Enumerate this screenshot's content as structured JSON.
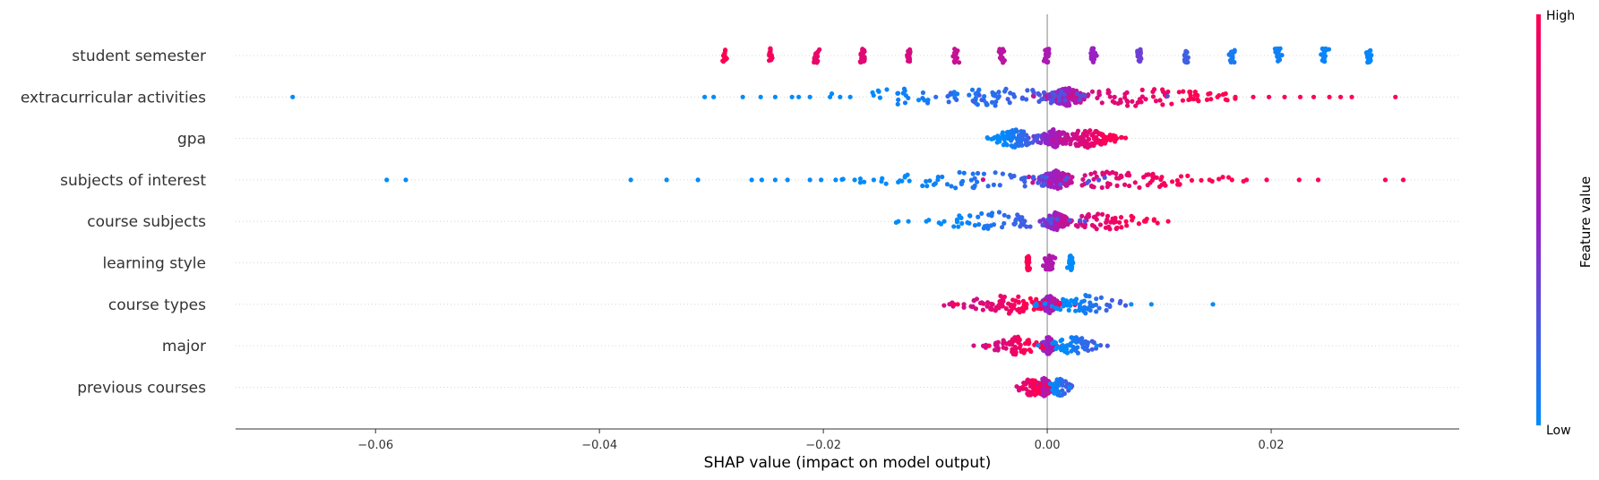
{
  "chart_data": {
    "type": "scatter",
    "title": "",
    "xlabel": "SHAP value (impact on model output)",
    "ylabel": "",
    "xlim": [
      -0.0725,
      0.0368
    ],
    "xticks": [
      {
        "value": -0.06,
        "label": "−0.06"
      },
      {
        "value": -0.04,
        "label": "−0.04"
      },
      {
        "value": -0.02,
        "label": "−0.02"
      },
      {
        "value": 0.0,
        "label": "0.00"
      },
      {
        "value": 0.02,
        "label": "0.02"
      }
    ],
    "zero_line": 0.0,
    "grid": "dotted horizontal rows",
    "colors": {
      "low": "#008bfb",
      "high": "#ff0052",
      "mid": "#9b1fc4",
      "axis": "#333333",
      "zero_line": "#999999"
    },
    "colorbar": {
      "title": "Feature value",
      "low_label": "Low",
      "high_label": "High"
    },
    "features": [
      {
        "name": "student semester",
        "clusters": [
          {
            "x": -0.0288,
            "c": 1.0,
            "n": 14,
            "s": 0.00012
          },
          {
            "x": -0.0247,
            "c": 0.95,
            "n": 18,
            "s": 0.00012
          },
          {
            "x": -0.0206,
            "c": 0.9,
            "n": 20,
            "s": 0.00012
          },
          {
            "x": -0.0165,
            "c": 0.85,
            "n": 24,
            "s": 0.00012
          },
          {
            "x": -0.0124,
            "c": 0.8,
            "n": 18,
            "s": 0.00012
          },
          {
            "x": -0.0082,
            "c": 0.72,
            "n": 18,
            "s": 0.00012
          },
          {
            "x": -0.0041,
            "c": 0.65,
            "n": 18,
            "s": 0.00012
          },
          {
            "x": 0.0,
            "c": 0.58,
            "n": 22,
            "s": 0.00012
          },
          {
            "x": 0.0041,
            "c": 0.5,
            "n": 18,
            "s": 0.00012
          },
          {
            "x": 0.0082,
            "c": 0.35,
            "n": 22,
            "s": 0.00012
          },
          {
            "x": 0.0124,
            "c": 0.2,
            "n": 20,
            "s": 0.00012
          },
          {
            "x": 0.0165,
            "c": 0.08,
            "n": 20,
            "s": 0.00012
          },
          {
            "x": 0.0206,
            "c": 0.05,
            "n": 18,
            "s": 0.00012
          },
          {
            "x": 0.0247,
            "c": 0.03,
            "n": 18,
            "s": 0.00012
          },
          {
            "x": 0.0288,
            "c": 0.02,
            "n": 16,
            "s": 0.00012
          }
        ],
        "outliers": []
      },
      {
        "name": "extracurricular activities",
        "clusters": [
          {
            "x": 0.0018,
            "c": 0.55,
            "n": 120,
            "s": 0.0009
          },
          {
            "x": 0.008,
            "c": 0.88,
            "n": 80,
            "s": 0.0045
          },
          {
            "x": -0.004,
            "c": 0.15,
            "n": 70,
            "s": 0.0045
          },
          {
            "x": -0.012,
            "c": 0.08,
            "n": 30,
            "s": 0.004
          }
        ],
        "outliers": [
          {
            "x": -0.0674,
            "c": 0.0
          },
          {
            "x": -0.0306,
            "c": 0.0
          },
          {
            "x": -0.0298,
            "c": 0.0
          },
          {
            "x": -0.0272,
            "c": 0.0
          },
          {
            "x": -0.0256,
            "c": 0.0
          },
          {
            "x": -0.0243,
            "c": 0.0
          },
          {
            "x": -0.0228,
            "c": 0.0
          },
          {
            "x": -0.0222,
            "c": 0.0
          },
          {
            "x": -0.0212,
            "c": 0.0
          },
          {
            "x": -0.0194,
            "c": 0.0
          },
          {
            "x": -0.0185,
            "c": 0.0
          },
          {
            "x": -0.0176,
            "c": 0.0
          },
          {
            "x": 0.0152,
            "c": 1.0
          },
          {
            "x": 0.0168,
            "c": 1.0
          },
          {
            "x": 0.0184,
            "c": 1.0
          },
          {
            "x": 0.0198,
            "c": 1.0
          },
          {
            "x": 0.0212,
            "c": 1.0
          },
          {
            "x": 0.0226,
            "c": 1.0
          },
          {
            "x": 0.0238,
            "c": 1.0
          },
          {
            "x": 0.0252,
            "c": 1.0
          },
          {
            "x": 0.0262,
            "c": 1.0
          },
          {
            "x": 0.0272,
            "c": 1.0
          },
          {
            "x": 0.0311,
            "c": 1.0
          }
        ]
      },
      {
        "name": "gpa",
        "clusters": [
          {
            "x": 0.0006,
            "c": 0.55,
            "n": 110,
            "s": 0.0008
          },
          {
            "x": 0.0035,
            "c": 0.85,
            "n": 90,
            "s": 0.0013
          },
          {
            "x": -0.0028,
            "c": 0.1,
            "n": 80,
            "s": 0.0012
          }
        ],
        "outliers": [
          {
            "x": -0.0048,
            "c": 0.0
          },
          {
            "x": 0.0062,
            "c": 1.0
          }
        ]
      },
      {
        "name": "subjects of interest",
        "clusters": [
          {
            "x": 0.0008,
            "c": 0.55,
            "n": 120,
            "s": 0.0008
          },
          {
            "x": 0.007,
            "c": 0.88,
            "n": 70,
            "s": 0.0045
          },
          {
            "x": -0.006,
            "c": 0.12,
            "n": 70,
            "s": 0.0055
          }
        ],
        "outliers": [
          {
            "x": -0.059,
            "c": 0.0
          },
          {
            "x": -0.0573,
            "c": 0.0
          },
          {
            "x": -0.0372,
            "c": 0.0
          },
          {
            "x": -0.034,
            "c": 0.0
          },
          {
            "x": -0.0312,
            "c": 0.0
          },
          {
            "x": -0.0264,
            "c": 0.0
          },
          {
            "x": -0.0255,
            "c": 0.0
          },
          {
            "x": -0.0243,
            "c": 0.0
          },
          {
            "x": -0.0232,
            "c": 0.0
          },
          {
            "x": -0.0212,
            "c": 0.0
          },
          {
            "x": -0.0202,
            "c": 0.0
          },
          {
            "x": -0.0189,
            "c": 0.0
          },
          {
            "x": -0.0172,
            "c": 0.0
          },
          {
            "x": -0.0155,
            "c": 0.0
          },
          {
            "x": 0.0145,
            "c": 1.0
          },
          {
            "x": 0.0165,
            "c": 1.0
          },
          {
            "x": 0.0178,
            "c": 1.0
          },
          {
            "x": 0.0196,
            "c": 1.0
          },
          {
            "x": 0.0225,
            "c": 1.0
          },
          {
            "x": 0.0242,
            "c": 1.0
          },
          {
            "x": 0.0302,
            "c": 1.0
          },
          {
            "x": 0.0318,
            "c": 1.0
          }
        ]
      },
      {
        "name": "course subjects",
        "clusters": [
          {
            "x": 0.0008,
            "c": 0.55,
            "n": 100,
            "s": 0.0006
          },
          {
            "x": 0.005,
            "c": 0.88,
            "n": 60,
            "s": 0.0022
          },
          {
            "x": -0.0045,
            "c": 0.12,
            "n": 60,
            "s": 0.003
          }
        ],
        "outliers": [
          {
            "x": -0.0133,
            "c": 0.0
          },
          {
            "x": -0.0124,
            "c": 0.0
          },
          {
            "x": -0.0108,
            "c": 0.0
          },
          {
            "x": -0.0092,
            "c": 0.0
          },
          {
            "x": 0.0088,
            "c": 1.0
          },
          {
            "x": 0.0108,
            "c": 1.0
          }
        ]
      },
      {
        "name": "learning style",
        "clusters": [
          {
            "x": -0.0017,
            "c": 1.0,
            "n": 30,
            "s": 8e-05
          },
          {
            "x": 0.0002,
            "c": 0.6,
            "n": 40,
            "s": 0.0002
          },
          {
            "x": 0.0021,
            "c": 0.0,
            "n": 30,
            "s": 8e-05
          }
        ],
        "outliers": []
      },
      {
        "name": "course types",
        "clusters": [
          {
            "x": 0.0002,
            "c": 0.55,
            "n": 110,
            "s": 0.0004
          },
          {
            "x": -0.0035,
            "c": 0.92,
            "n": 80,
            "s": 0.0022
          },
          {
            "x": 0.0035,
            "c": 0.08,
            "n": 60,
            "s": 0.0018
          }
        ],
        "outliers": [
          {
            "x": -0.0083,
            "c": 1.0
          },
          {
            "x": -0.008,
            "c": 1.0
          },
          {
            "x": 0.0075,
            "c": 0.0
          },
          {
            "x": 0.0093,
            "c": 0.0
          },
          {
            "x": 0.0148,
            "c": 0.0
          }
        ]
      },
      {
        "name": "major",
        "clusters": [
          {
            "x": 0.0001,
            "c": 0.55,
            "n": 90,
            "s": 0.0003
          },
          {
            "x": -0.0028,
            "c": 0.92,
            "n": 60,
            "s": 0.0012
          },
          {
            "x": 0.0025,
            "c": 0.08,
            "n": 60,
            "s": 0.0011
          }
        ],
        "outliers": [
          {
            "x": -0.0052,
            "c": 1.0
          },
          {
            "x": 0.0044,
            "c": 0.0
          }
        ]
      },
      {
        "name": "previous courses",
        "clusters": [
          {
            "x": -0.0003,
            "c": 0.6,
            "n": 120,
            "s": 0.0004
          },
          {
            "x": -0.0014,
            "c": 0.95,
            "n": 50,
            "s": 0.0006
          },
          {
            "x": 0.0011,
            "c": 0.1,
            "n": 50,
            "s": 0.0005
          }
        ],
        "outliers": [
          {
            "x": -0.0022,
            "c": 1.0
          },
          {
            "x": 0.002,
            "c": 0.0
          }
        ]
      }
    ]
  }
}
